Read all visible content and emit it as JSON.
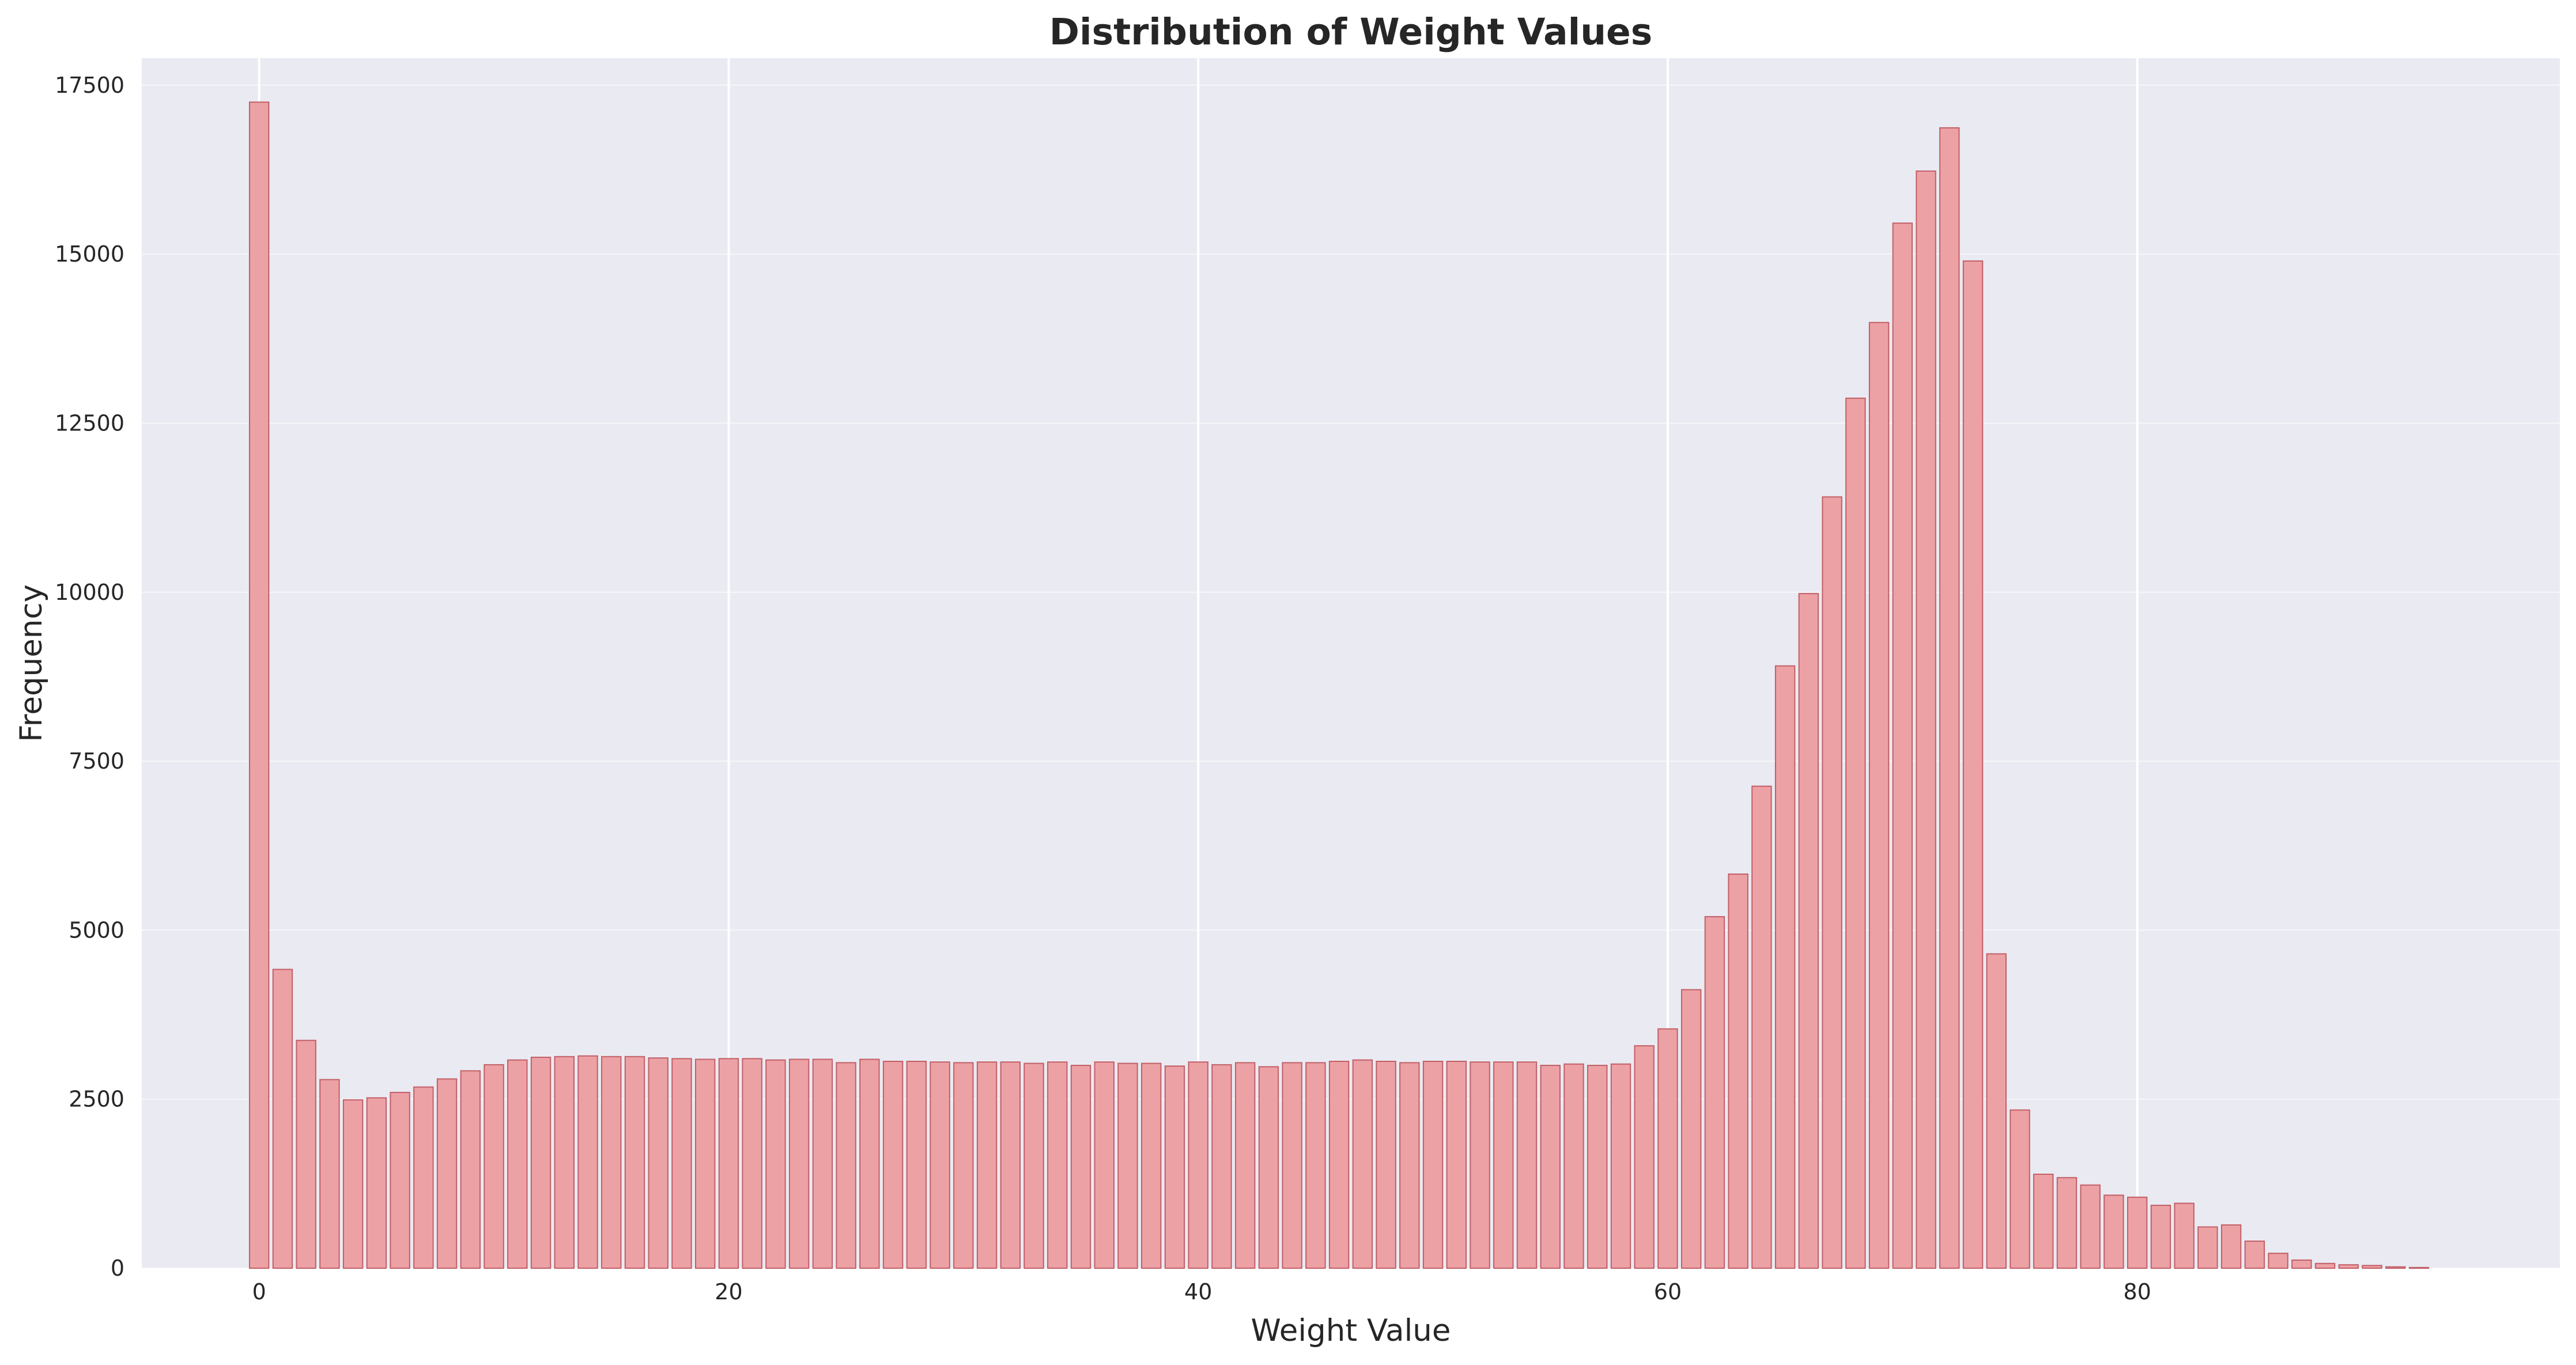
{
  "chart_data": {
    "type": "bar",
    "title": "Distribution of Weight Values",
    "xlabel": "Weight Value",
    "ylabel": "Frequency",
    "xlim": [
      -5,
      98
    ],
    "ylim": [
      0,
      17900
    ],
    "xticks": [
      0,
      20,
      40,
      60,
      80
    ],
    "yticks": [
      0,
      2500,
      5000,
      7500,
      10000,
      12500,
      15000,
      17500
    ],
    "grid": true,
    "colors": {
      "plot_background": "#eaeaf2",
      "bar_fill": "#eca1a5",
      "bar_edge": "#c25f66",
      "text": "#262626"
    },
    "x": [
      0,
      1,
      2,
      3,
      4,
      5,
      6,
      7,
      8,
      9,
      10,
      11,
      12,
      13,
      14,
      15,
      16,
      17,
      18,
      19,
      20,
      21,
      22,
      23,
      24,
      25,
      26,
      27,
      28,
      29,
      30,
      31,
      32,
      33,
      34,
      35,
      36,
      37,
      38,
      39,
      40,
      41,
      42,
      43,
      44,
      45,
      46,
      47,
      48,
      49,
      50,
      51,
      52,
      53,
      54,
      55,
      56,
      57,
      58,
      59,
      60,
      61,
      62,
      63,
      64,
      65,
      66,
      67,
      68,
      69,
      70,
      71,
      72,
      73,
      74,
      75,
      76,
      77,
      78,
      79,
      80,
      81,
      82,
      83,
      84,
      85,
      86,
      87,
      88,
      89,
      90,
      91,
      92,
      93,
      94
    ],
    "values": [
      17250,
      4420,
      3370,
      2790,
      2490,
      2520,
      2600,
      2680,
      2800,
      2920,
      3010,
      3080,
      3120,
      3130,
      3140,
      3130,
      3130,
      3110,
      3100,
      3090,
      3100,
      3100,
      3080,
      3090,
      3090,
      3040,
      3090,
      3060,
      3060,
      3050,
      3040,
      3050,
      3050,
      3030,
      3050,
      3000,
      3050,
      3030,
      3030,
      2990,
      3050,
      3010,
      3040,
      2980,
      3040,
      3040,
      3060,
      3080,
      3060,
      3040,
      3060,
      3060,
      3050,
      3050,
      3050,
      3000,
      3020,
      3000,
      3020,
      3290,
      3540,
      4120,
      5200,
      5830,
      7130,
      8910,
      9980,
      11410,
      12870,
      13990,
      15460,
      16230,
      16870,
      14900,
      4650,
      2340,
      1390,
      1340,
      1230,
      1080,
      1050,
      930,
      960,
      610,
      640,
      400,
      220,
      120,
      70,
      50,
      40,
      20,
      10,
      0,
      0
    ]
  }
}
